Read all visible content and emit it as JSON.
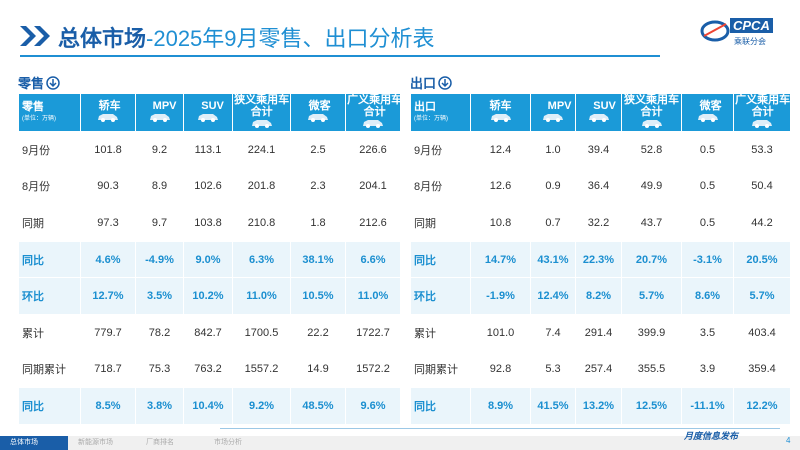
{
  "header": {
    "title_main": "总体市场",
    "title_rest": "-2025年9月零售、出口分析表",
    "logo_text": "CPCA",
    "logo_subtext": "乘联分会"
  },
  "tables": [
    {
      "section": "零售",
      "corner_label": "零售",
      "unit": "(单位：万辆)",
      "columns": [
        "轿车",
        "MPV",
        "SUV",
        "狭义乘用车合计",
        "微客",
        "广义乘用车合计"
      ],
      "rows": [
        {
          "label": "9月份",
          "highlight": false,
          "cells": [
            "101.8",
            "9.2",
            "113.1",
            "224.1",
            "2.5",
            "226.6"
          ]
        },
        {
          "label": "8月份",
          "highlight": false,
          "cells": [
            "90.3",
            "8.9",
            "102.6",
            "201.8",
            "2.3",
            "204.1"
          ]
        },
        {
          "label": "同期",
          "highlight": false,
          "cells": [
            "97.3",
            "9.7",
            "103.8",
            "210.8",
            "1.8",
            "212.6"
          ]
        },
        {
          "label": "同比",
          "highlight": true,
          "cells": [
            "4.6%",
            "-4.9%",
            "9.0%",
            "6.3%",
            "38.1%",
            "6.6%"
          ]
        },
        {
          "label": "环比",
          "highlight": true,
          "cells": [
            "12.7%",
            "3.5%",
            "10.2%",
            "11.0%",
            "10.5%",
            "11.0%"
          ]
        },
        {
          "label": "累计",
          "highlight": false,
          "cells": [
            "779.7",
            "78.2",
            "842.7",
            "1700.5",
            "22.2",
            "1722.7"
          ]
        },
        {
          "label": "同期累计",
          "highlight": false,
          "cells": [
            "718.7",
            "75.3",
            "763.2",
            "1557.2",
            "14.9",
            "1572.2"
          ]
        },
        {
          "label": "同比",
          "highlight": true,
          "cells": [
            "8.5%",
            "3.8%",
            "10.4%",
            "9.2%",
            "48.5%",
            "9.6%"
          ]
        }
      ]
    },
    {
      "section": "出口",
      "corner_label": "出口",
      "unit": "(单位：万辆)",
      "columns": [
        "轿车",
        "MPV",
        "SUV",
        "狭义乘用车合计",
        "微客",
        "广义乘用车合计"
      ],
      "rows": [
        {
          "label": "9月份",
          "highlight": false,
          "cells": [
            "12.4",
            "1.0",
            "39.4",
            "52.8",
            "0.5",
            "53.3"
          ]
        },
        {
          "label": "8月份",
          "highlight": false,
          "cells": [
            "12.6",
            "0.9",
            "36.4",
            "49.9",
            "0.5",
            "50.4"
          ]
        },
        {
          "label": "同期",
          "highlight": false,
          "cells": [
            "10.8",
            "0.7",
            "32.2",
            "43.7",
            "0.5",
            "44.2"
          ]
        },
        {
          "label": "同比",
          "highlight": true,
          "cells": [
            "14.7%",
            "43.1%",
            "22.3%",
            "20.7%",
            "-3.1%",
            "20.5%"
          ]
        },
        {
          "label": "环比",
          "highlight": true,
          "cells": [
            "-1.9%",
            "12.4%",
            "8.2%",
            "5.7%",
            "8.6%",
            "5.7%"
          ]
        },
        {
          "label": "累计",
          "highlight": false,
          "cells": [
            "101.0",
            "7.4",
            "291.4",
            "399.9",
            "3.5",
            "403.4"
          ]
        },
        {
          "label": "同期累计",
          "highlight": false,
          "cells": [
            "92.8",
            "5.3",
            "257.4",
            "355.5",
            "3.9",
            "359.4"
          ]
        },
        {
          "label": "同比",
          "highlight": true,
          "cells": [
            "8.9%",
            "41.5%",
            "13.2%",
            "12.5%",
            "-11.1%",
            "12.2%"
          ]
        }
      ]
    }
  ],
  "footer": {
    "tabs": [
      "总体市场",
      "新能源市场",
      "厂商排名",
      "市场分析"
    ],
    "slogan": "月度信息发布",
    "page": "4"
  }
}
